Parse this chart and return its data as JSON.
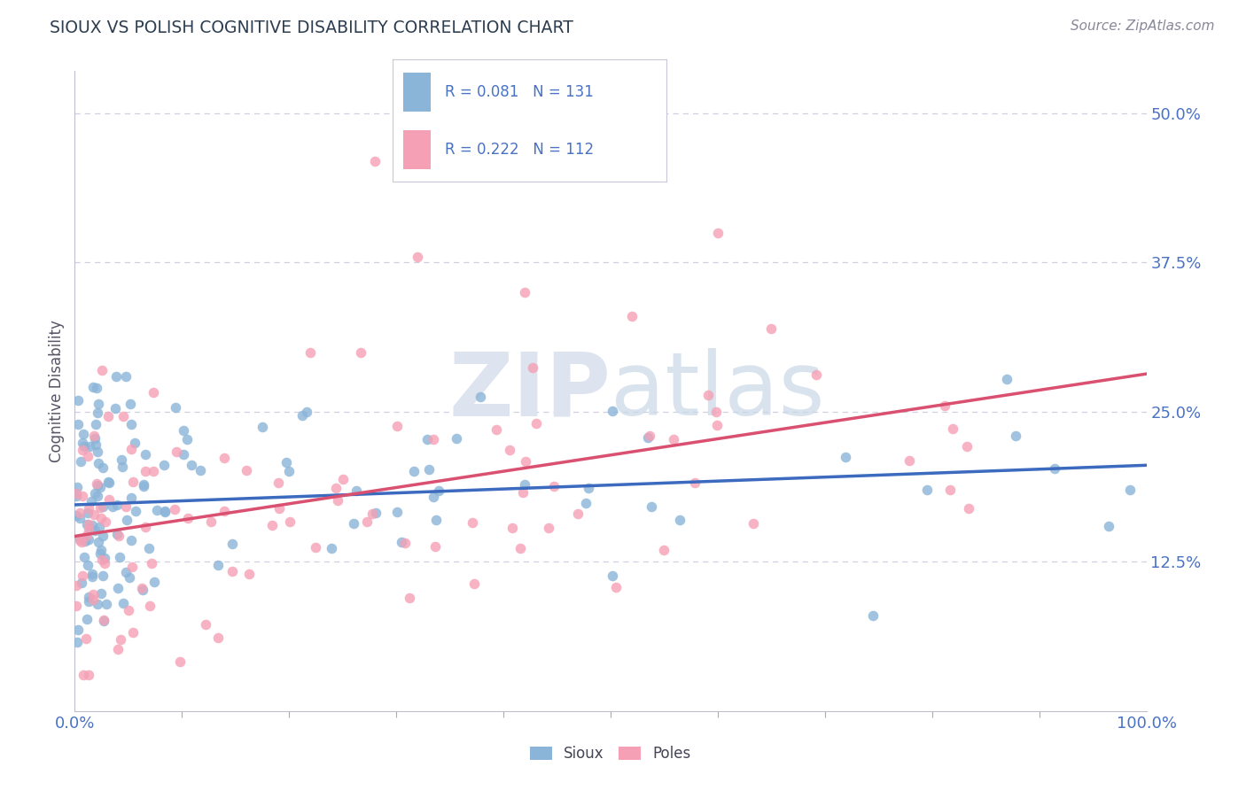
{
  "title": "SIOUX VS POLISH COGNITIVE DISABILITY CORRELATION CHART",
  "source_text": "Source: ZipAtlas.com",
  "ylabel": "Cognitive Disability",
  "xlabel": "",
  "legend_labels": [
    "Sioux",
    "Poles"
  ],
  "sioux_R": 0.081,
  "sioux_N": 131,
  "poles_R": 0.222,
  "poles_N": 112,
  "xlim": [
    0.0,
    1.0
  ],
  "ylim": [
    0.0,
    0.53
  ],
  "ytick_vals": [
    0.125,
    0.25,
    0.375,
    0.5
  ],
  "ytick_labels": [
    "12.5%",
    "25.0%",
    "37.5%",
    "50.0%"
  ],
  "xtick_labels": [
    "0.0%",
    "100.0%"
  ],
  "sioux_color": "#8ab4d8",
  "poles_color": "#f5a0b5",
  "sioux_line_color": "#3b6abf",
  "poles_line_color": "#d95070",
  "background_color": "#ffffff",
  "title_color": "#2d3e50",
  "label_color": "#4a72c4",
  "grid_color": "#d0d0e0",
  "watermark_color": "#dde4f0"
}
